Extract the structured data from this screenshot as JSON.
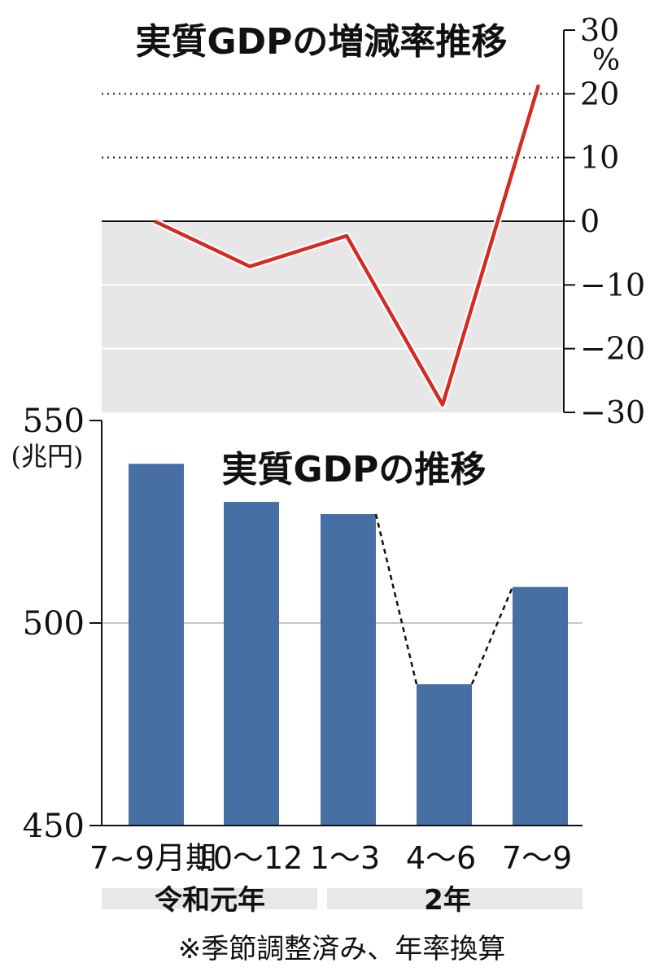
{
  "chart_data": [
    {
      "type": "line",
      "title": "実質GDPの増減率推移",
      "unit": "%",
      "categories": [
        "7~9月期",
        "10〜12",
        "1〜3",
        "4〜6",
        "7〜9"
      ],
      "series": [
        {
          "values": [
            0,
            -7.1,
            -2.3,
            -28.8,
            21.4
          ],
          "color": "#d42a22"
        }
      ],
      "ylim": [
        -30,
        30
      ],
      "yticks": [
        "30",
        "20",
        "10",
        "0",
        "−10",
        "−20",
        "−30"
      ],
      "negative_region_shaded": true,
      "y_axis_side": "right"
    },
    {
      "type": "bar",
      "title": "実質GDPの推移",
      "unit": "(兆円)",
      "categories": [
        "7~9月期",
        "10〜12",
        "1〜3",
        "4〜6",
        "7〜9"
      ],
      "values": [
        539.3,
        529.9,
        526.9,
        484.9,
        508.9
      ],
      "color": "#466fa4",
      "ylim": [
        450,
        550
      ],
      "yticks": [
        "550",
        "500",
        "450"
      ],
      "grid": true
    }
  ],
  "axis_groups": [
    {
      "label": "令和元年"
    },
    {
      "label": "2年"
    }
  ],
  "footnote": "※季節調整済み、年率換算"
}
